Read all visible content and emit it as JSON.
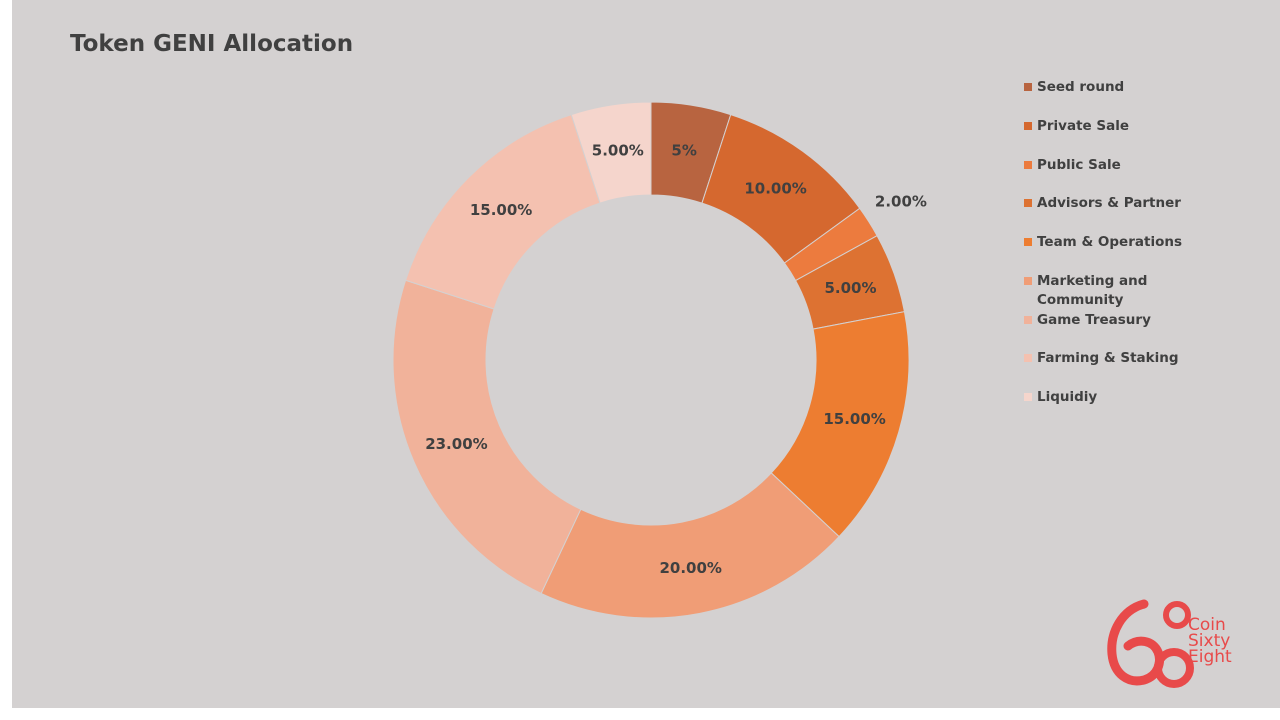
{
  "chart_data": {
    "type": "pie",
    "donut": true,
    "title": "Token GENI Allocation",
    "legend_position": "right",
    "slices": [
      {
        "name": "Seed round",
        "value": 5,
        "label": "5%",
        "color": "#b86440"
      },
      {
        "name": "Private Sale",
        "value": 10,
        "label": "10.00%",
        "color": "#d5682f"
      },
      {
        "name": "Public Sale",
        "value": 2,
        "label": "2.00%",
        "color": "#ec7b3e"
      },
      {
        "name": "Advisors & Partner",
        "value": 5,
        "label": "5.00%",
        "color": "#dd7232"
      },
      {
        "name": "Team & Operations",
        "value": 15,
        "label": "15.00%",
        "color": "#ed7d31"
      },
      {
        "name": "Marketing and Community",
        "value": 20,
        "label": "20.00%",
        "color": "#f09d76"
      },
      {
        "name": "Game Treasury",
        "value": 23,
        "label": "23.00%",
        "color": "#f1b29a"
      },
      {
        "name": "Farming & Staking",
        "value": 15,
        "label": "15.00%",
        "color": "#f4c1b0"
      },
      {
        "name": "Liquidiy",
        "value": 5,
        "label": "5.00%",
        "color": "#f5d5cc"
      }
    ]
  },
  "logo": {
    "line1": "Coin",
    "line2": "Sixty",
    "line3": "Eight",
    "color": "#e84a4a"
  }
}
